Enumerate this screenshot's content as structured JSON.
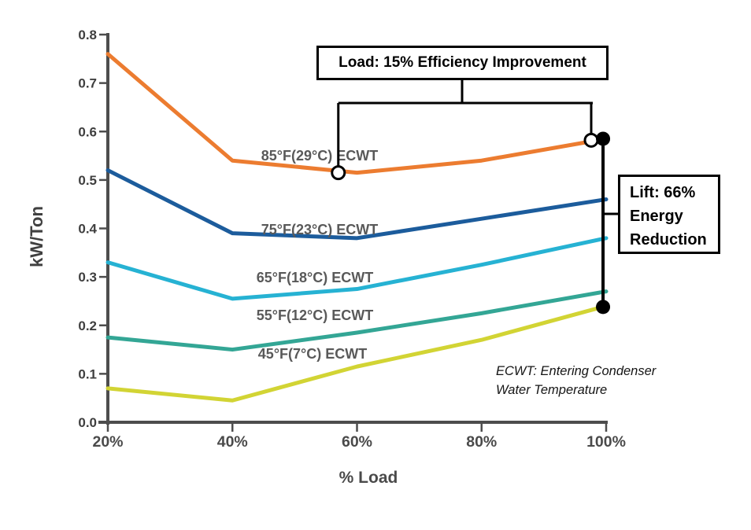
{
  "chart_data": {
    "type": "line",
    "title": "",
    "xlabel": "% Load",
    "ylabel": "kW/Ton",
    "x": [
      20,
      40,
      60,
      80,
      100
    ],
    "x_tick_labels": [
      "20%",
      "40%",
      "60%",
      "80%",
      "100%"
    ],
    "y_ticks": [
      0.0,
      0.1,
      0.2,
      0.3,
      0.4,
      0.5,
      0.6,
      0.7,
      0.8
    ],
    "y_tick_labels": [
      "0.0",
      "0.1",
      "0.2",
      "0.3",
      "0.4",
      "0.5",
      "0.6",
      "0.7",
      "0.8"
    ],
    "xlim": [
      20,
      100
    ],
    "ylim": [
      0,
      0.8
    ],
    "grid": false,
    "legend_position": "inline-labels-on-plot",
    "series": [
      {
        "name": "85°F(29°C) ECWT",
        "color": "#EC7C30",
        "values": [
          0.76,
          0.54,
          0.515,
          0.54,
          0.585
        ]
      },
      {
        "name": "75°F(23°C) ECWT",
        "color": "#1C5C9C",
        "values": [
          0.52,
          0.39,
          0.38,
          0.42,
          0.46
        ]
      },
      {
        "name": "65°F(18°C) ECWT",
        "color": "#26B2D3",
        "values": [
          0.33,
          0.255,
          0.275,
          0.325,
          0.38
        ]
      },
      {
        "name": "55°F(12°C) ECWT",
        "color": "#33A695",
        "values": [
          0.175,
          0.15,
          0.185,
          0.225,
          0.27
        ]
      },
      {
        "name": "45°F(7°C) ECWT",
        "color": "#D2D434",
        "values": [
          0.07,
          0.045,
          0.115,
          0.17,
          0.24
        ]
      }
    ],
    "markers": [
      {
        "style": "open",
        "load": 57,
        "value": 0.515
      },
      {
        "style": "open",
        "load": 97.6,
        "value": 0.582
      },
      {
        "style": "filled",
        "load": 99.5,
        "value": 0.585
      },
      {
        "style": "filled",
        "load": 99.5,
        "value": 0.238
      }
    ],
    "annotations": {
      "load_callout": "Load: 15% Efficiency Improvement",
      "lift_callout": "Lift: 66% Energy Reduction",
      "note": "ECWT: Entering Condenser Water Temperature"
    },
    "colors": {
      "axis": "#4D4D4D",
      "tick_label": "#3F3F3F",
      "series_label": "#595959",
      "annotation_line": "#000000"
    }
  }
}
